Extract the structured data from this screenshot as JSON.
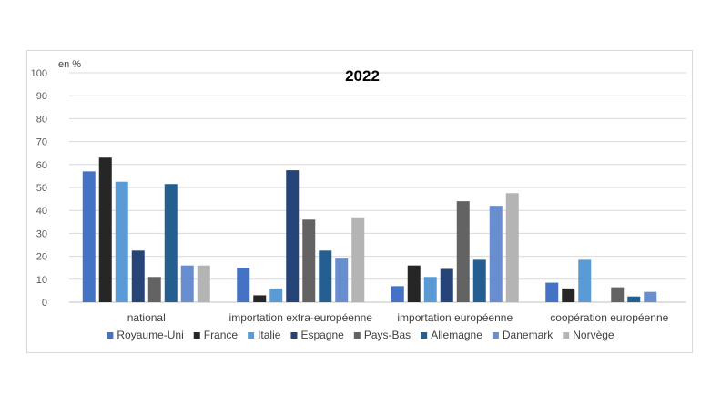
{
  "chart_data": {
    "type": "bar",
    "title": "2022",
    "ylabel": "en %",
    "ylim": [
      0,
      100
    ],
    "yticks": [
      0,
      10,
      20,
      30,
      40,
      50,
      60,
      70,
      80,
      90,
      100
    ],
    "grid": true,
    "legend_position": "bottom",
    "categories": [
      "national",
      "importation extra-européenne",
      "importation européenne",
      "coopération européenne"
    ],
    "series": [
      {
        "name": "Royaume-Uni",
        "color": "#4472c4",
        "values": [
          57,
          15,
          7,
          8.5
        ]
      },
      {
        "name": "France",
        "color": "#262626",
        "values": [
          63,
          3,
          16,
          6
        ]
      },
      {
        "name": "Italie",
        "color": "#5b9bd5",
        "values": [
          52.5,
          6,
          11,
          18.5
        ]
      },
      {
        "name": "Espagne",
        "color": "#264478",
        "values": [
          22.5,
          57.5,
          14.5,
          0
        ]
      },
      {
        "name": "Pays-Bas",
        "color": "#636363",
        "values": [
          11,
          36,
          44,
          6.5
        ]
      },
      {
        "name": "Allemagne",
        "color": "#255e91",
        "values": [
          51.5,
          22.5,
          18.5,
          2.5
        ]
      },
      {
        "name": "Danemark",
        "color": "#698ed0",
        "values": [
          16,
          19,
          42,
          4.5
        ]
      },
      {
        "name": "Norvège",
        "color": "#b4b4b4",
        "values": [
          16,
          37,
          47.5,
          0
        ]
      }
    ]
  }
}
